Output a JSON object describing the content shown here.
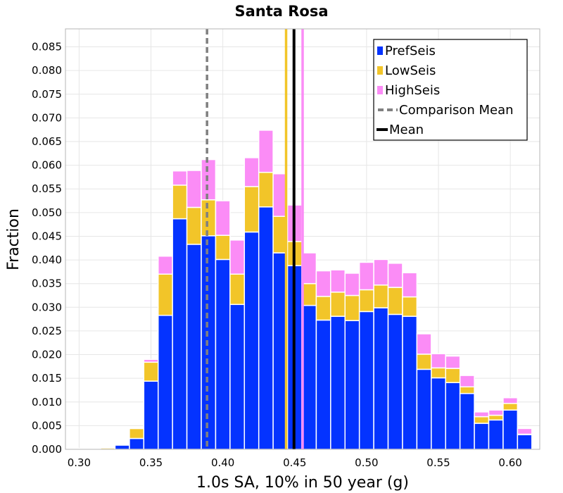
{
  "chart_data": {
    "type": "bar",
    "stacked": true,
    "title": "Santa Rosa",
    "xlabel": "1.0s SA, 10% in 50 year (g)",
    "ylabel": "Fraction",
    "xlim": [
      0.2905,
      0.6205
    ],
    "ylim": [
      0.0,
      0.0888
    ],
    "xticks": [
      "0.30",
      "0.35",
      "0.40",
      "0.45",
      "0.50",
      "0.55",
      "0.60"
    ],
    "yticks": [
      "0.000",
      "0.005",
      "0.010",
      "0.015",
      "0.020",
      "0.025",
      "0.030",
      "0.035",
      "0.040",
      "0.045",
      "0.050",
      "0.055",
      "0.060",
      "0.065",
      "0.070",
      "0.075",
      "0.080",
      "0.085"
    ],
    "bin_width": 0.01,
    "bin_centers": [
      0.3,
      0.31,
      0.32,
      0.33,
      0.34,
      0.35,
      0.36,
      0.37,
      0.38,
      0.39,
      0.4,
      0.41,
      0.42,
      0.43,
      0.44,
      0.45,
      0.46,
      0.47,
      0.48,
      0.49,
      0.5,
      0.51,
      0.52,
      0.53,
      0.54,
      0.55,
      0.56,
      0.57,
      0.58,
      0.59,
      0.6,
      0.61,
      0.62
    ],
    "series": [
      {
        "name": "PrefSeis",
        "color": "#0433ff",
        "values": [
          0.0,
          0.0,
          0.0,
          0.0009,
          0.0023,
          0.0144,
          0.0283,
          0.0487,
          0.0433,
          0.0451,
          0.0401,
          0.0306,
          0.0459,
          0.0512,
          0.0415,
          0.0388,
          0.0304,
          0.0273,
          0.0281,
          0.0272,
          0.0291,
          0.0299,
          0.0285,
          0.0281,
          0.0169,
          0.0151,
          0.0141,
          0.0118,
          0.0055,
          0.0062,
          0.0083,
          0.0031,
          0.0
        ]
      },
      {
        "name": "LowSeis",
        "color": "#f2c529",
        "values": [
          0.0,
          0.0001,
          0.0003,
          0.0001,
          0.0021,
          0.004,
          0.0087,
          0.0071,
          0.0078,
          0.0076,
          0.0051,
          0.0064,
          0.0096,
          0.0073,
          0.0077,
          0.0051,
          0.0046,
          0.005,
          0.0051,
          0.0053,
          0.0046,
          0.0048,
          0.0057,
          0.0041,
          0.0032,
          0.0021,
          0.003,
          0.0014,
          0.0014,
          0.001,
          0.0014,
          0.0001,
          0.0
        ]
      },
      {
        "name": "HighSeis",
        "color": "#fb8cf6",
        "values": [
          0.0002,
          0.0001,
          0.0001,
          0.0,
          0.0002,
          0.0006,
          0.0038,
          0.003,
          0.0078,
          0.0085,
          0.0073,
          0.0072,
          0.0061,
          0.0089,
          0.009,
          0.0077,
          0.0065,
          0.0054,
          0.0047,
          0.0047,
          0.0058,
          0.0054,
          0.0051,
          0.0051,
          0.0043,
          0.003,
          0.0026,
          0.0024,
          0.001,
          0.0011,
          0.0012,
          0.0012,
          0.0001
        ]
      }
    ],
    "reference_lines": [
      {
        "name": "Comparison Mean",
        "x": 0.389,
        "color": "#808080",
        "style": "dashed"
      },
      {
        "name": "Mean",
        "x": 0.4495,
        "color": "#000000",
        "style": "solid"
      },
      {
        "name": "LowSeis mean",
        "x": 0.444,
        "color": "#f2c529",
        "style": "solid"
      },
      {
        "name": "HighSeis mean",
        "x": 0.4555,
        "color": "#fb8cf6",
        "style": "solid"
      }
    ],
    "legend": {
      "position": "top-right",
      "entries": [
        {
          "label": "PrefSeis",
          "kind": "box",
          "color": "#0433ff"
        },
        {
          "label": "LowSeis",
          "kind": "box",
          "color": "#f2c529"
        },
        {
          "label": "HighSeis",
          "kind": "box",
          "color": "#fb8cf6"
        },
        {
          "label": "Comparison Mean",
          "kind": "dash",
          "color": "#808080"
        },
        {
          "label": "Mean",
          "kind": "line",
          "color": "#000000"
        }
      ]
    },
    "grid": true
  }
}
